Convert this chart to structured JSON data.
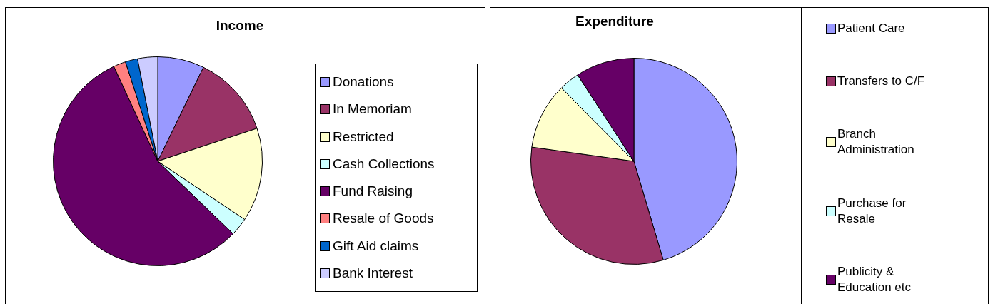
{
  "chart_data": [
    {
      "type": "pie",
      "title": "Income",
      "legend": "right",
      "categories": [
        "Donations",
        "In Memoriam",
        "Restricted",
        "Cash Collections",
        "Fund Raising",
        "Resale of Goods",
        "Gift Aid claims",
        "Bank Interest"
      ],
      "values": [
        7.2,
        12.7,
        14.5,
        2.8,
        55.9,
        1.9,
        1.9,
        3.1
      ],
      "colors": [
        "#9999ff",
        "#993366",
        "#ffffcc",
        "#ccffff",
        "#660066",
        "#ff8080",
        "#0066cc",
        "#ccccff"
      ]
    },
    {
      "type": "pie",
      "title": "Expenditure",
      "legend": "right",
      "categories": [
        "Patient Care",
        "Transfers to C/F",
        "Branch Administration",
        "Purchase for Resale",
        "Publicity & Education etc"
      ],
      "values": [
        45.4,
        31.8,
        10.4,
        3.2,
        9.2
      ],
      "colors": [
        "#9999ff",
        "#993366",
        "#ffffcc",
        "#ccffff",
        "#660066"
      ]
    }
  ]
}
